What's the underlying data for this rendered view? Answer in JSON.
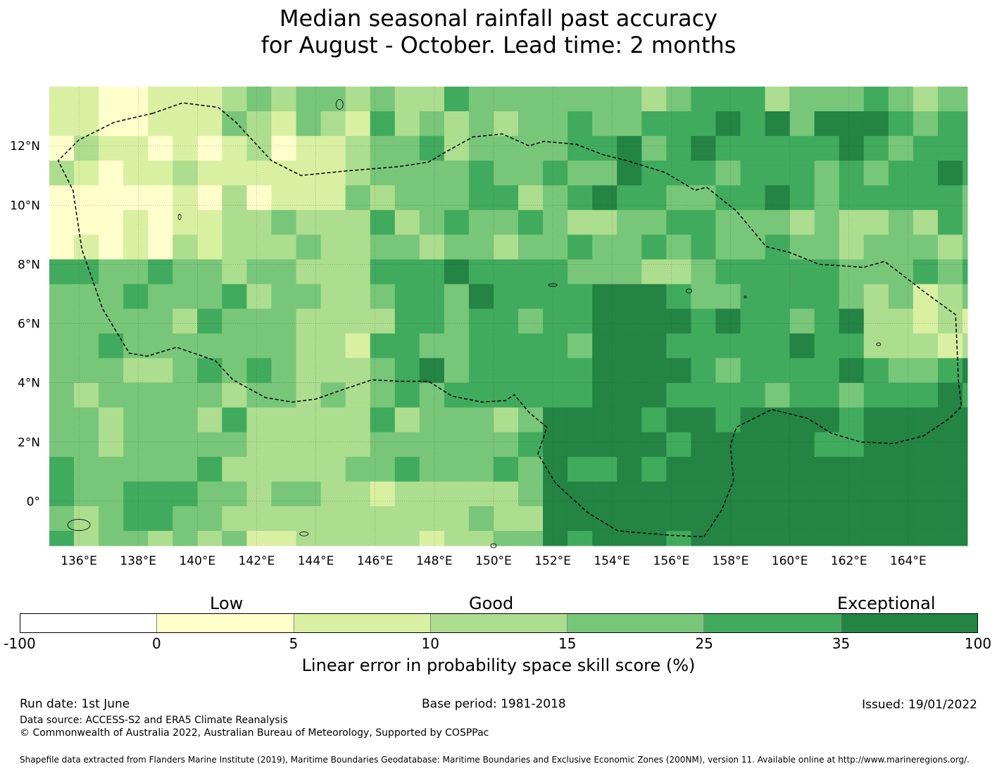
{
  "title_line1": "Median seasonal rainfall past accuracy",
  "title_line2": "for August - October. Lead time: 2 months",
  "map": {
    "lon_labels": [
      "136°E",
      "138°E",
      "140°E",
      "142°E",
      "144°E",
      "146°E",
      "148°E",
      "150°E",
      "152°E",
      "154°E",
      "156°E",
      "158°E",
      "160°E",
      "162°E",
      "164°E"
    ],
    "lat_labels": [
      "12°N",
      "10°N",
      "8°N",
      "6°N",
      "4°N",
      "2°N",
      "0°"
    ],
    "lon_range": [
      135.0,
      166.0
    ],
    "lat_range": [
      -1.5,
      14.0
    ]
  },
  "legend": {
    "category_low": "Low",
    "category_good": "Good",
    "category_exceptional": "Exceptional",
    "ticks": [
      "-100",
      "0",
      "5",
      "10",
      "15",
      "25",
      "35",
      "100"
    ],
    "colors": [
      "#ffffff",
      "#ffffcc",
      "#d9f0a3",
      "#addd8e",
      "#78c679",
      "#41ab5d",
      "#238443"
    ],
    "title": "Linear error in probability space skill score (%)"
  },
  "footer": {
    "run_date": "Run date: 1st June",
    "base_period": "Base period: 1981-2018",
    "issued": "Issued: 19/01/2022",
    "data_source": "Data source: ACCESS-S2 and ERA5 Climate Reanalysis",
    "copyright": "© Commonwealth of Australia 2022, Australian Bureau of Meteorology, Supported by COSPPac",
    "shapefile": "Shapefile data extracted from Flanders Marine Institute (2019), Maritime Boundaries Geodatabase: Maritime Boundaries and Exclusive Economic Zones (200NM), version 11. Available online at http://www.marineregions.org/."
  }
}
